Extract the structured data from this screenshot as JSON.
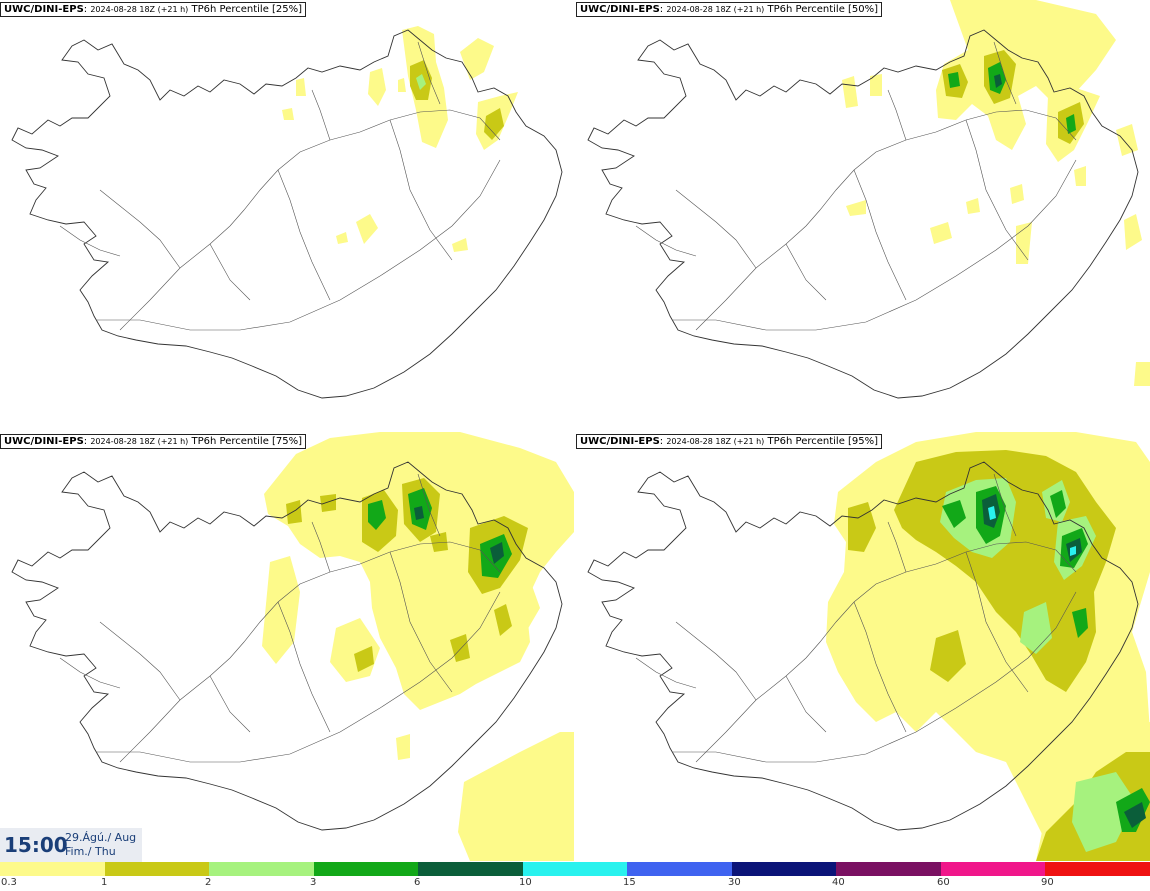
{
  "panels": [
    {
      "source": "UWC/DINI-EPS",
      "run": "2024-08-28 18Z (+21 h)",
      "title": "TP6h Percentile [25%]"
    },
    {
      "source": "UWC/DINI-EPS",
      "run": "2024-08-28 18Z (+21 h)",
      "title": "TP6h Percentile [50%]"
    },
    {
      "source": "UWC/DINI-EPS",
      "run": "2024-08-28 18Z (+21 h)",
      "title": "TP6h Percentile [75%]"
    },
    {
      "source": "UWC/DINI-EPS",
      "run": "2024-08-28 18Z (+21 h)",
      "title": "TP6h Percentile [95%]"
    }
  ],
  "valid": {
    "time": "15:00",
    "date_line1": "29.Ágú./ Aug",
    "date_line2": "Fim./ Thu"
  },
  "legend": {
    "colors": [
      "#fdfa8a",
      "#c9c916",
      "#a6f27e",
      "#12a818",
      "#0b5e3a",
      "#29f2ee",
      "#3f63f0",
      "#0b1478",
      "#7a1062",
      "#f0168a",
      "#ef1212"
    ],
    "ticks": [
      "0.3",
      "1",
      "2",
      "3",
      "6",
      "10",
      "15",
      "30",
      "40",
      "60",
      "90"
    ]
  },
  "colors": {
    "light": "#fdfa8a",
    "olive": "#c9c916",
    "lightgreen": "#a6f27e",
    "green": "#12a818",
    "darkgreen": "#0b5e3a",
    "cyan": "#29f2ee"
  }
}
